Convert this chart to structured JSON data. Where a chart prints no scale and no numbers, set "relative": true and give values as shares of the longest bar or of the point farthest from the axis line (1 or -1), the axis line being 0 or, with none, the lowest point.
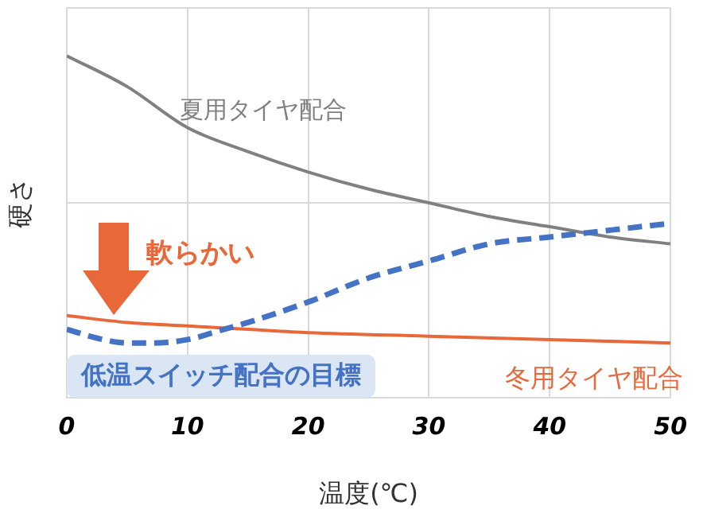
{
  "chart_data": {
    "type": "line",
    "xlabel": "温度(℃)",
    "ylabel": "硬さ",
    "relative": true,
    "grid": true,
    "legend": false,
    "marker": "none",
    "xlim": [
      0,
      50
    ],
    "xticks": [
      0,
      10,
      20,
      30,
      40,
      50
    ],
    "series": [
      {
        "name": "夏用タイヤ配合",
        "color": "#808080",
        "line_style": "solid",
        "x": [
          0,
          5,
          10,
          15,
          20,
          25,
          30,
          35,
          40,
          45,
          50
        ],
        "values": [
          1.0,
          0.91,
          0.79,
          0.72,
          0.66,
          0.61,
          0.57,
          0.53,
          0.5,
          0.47,
          0.45
        ]
      },
      {
        "name": "冬用タイヤ配合",
        "color": "#e8683a",
        "line_style": "solid",
        "x": [
          0,
          5,
          10,
          15,
          20,
          30,
          40,
          50
        ],
        "values": [
          0.24,
          0.22,
          0.21,
          0.2,
          0.19,
          0.18,
          0.17,
          0.16
        ]
      },
      {
        "name": "低温スイッチ配合の目標",
        "color": "#4472c4",
        "line_style": "dashed",
        "x": [
          0,
          3,
          5,
          7,
          10,
          13,
          15,
          20,
          25,
          30,
          35,
          40,
          45,
          50
        ],
        "values": [
          0.2,
          0.17,
          0.16,
          0.16,
          0.17,
          0.2,
          0.22,
          0.28,
          0.35,
          0.4,
          0.45,
          0.47,
          0.49,
          0.51
        ]
      }
    ],
    "annotations": [
      "軟らかい"
    ]
  }
}
